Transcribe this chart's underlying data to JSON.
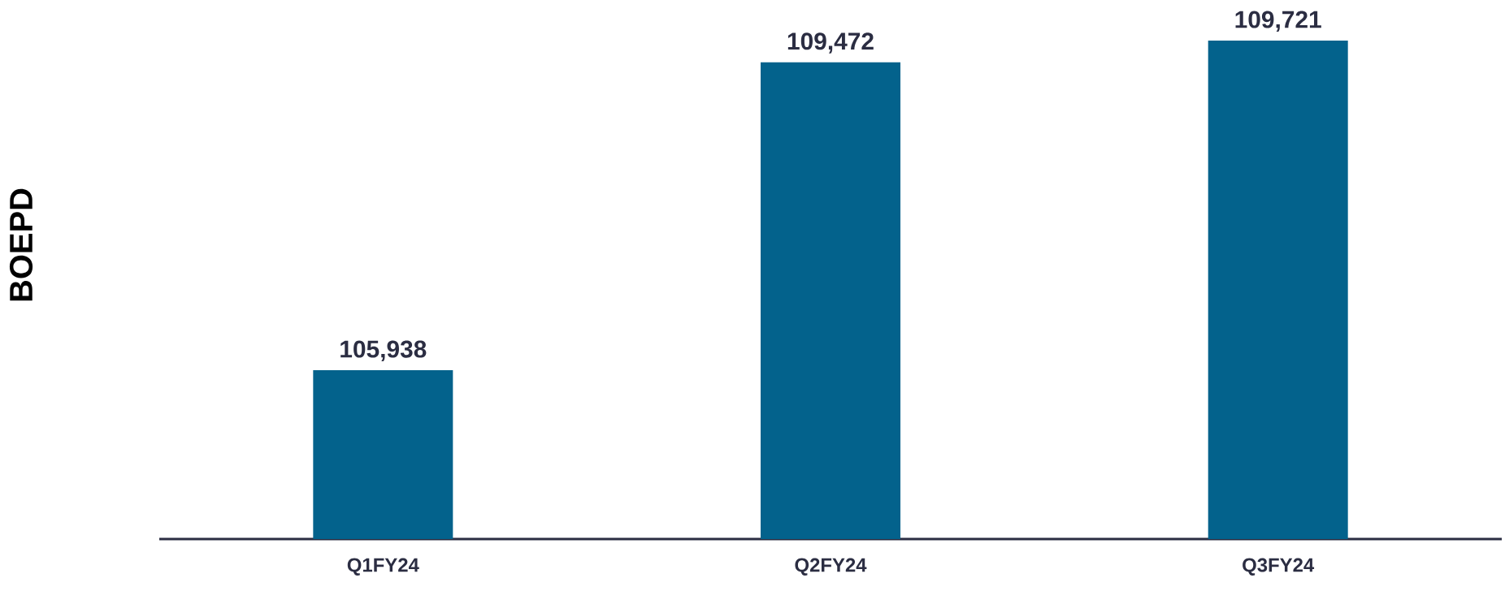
{
  "chart_data": {
    "type": "bar",
    "ylabel": "BOEPD",
    "categories": [
      "Q1FY24",
      "Q2FY24",
      "Q3FY24"
    ],
    "values": [
      105938,
      109472,
      109721
    ],
    "value_labels": [
      "105,938",
      "109,472",
      "109,721"
    ],
    "color": "#03628c",
    "ylim": [
      104000,
      109721
    ],
    "tick_labels": "x"
  }
}
